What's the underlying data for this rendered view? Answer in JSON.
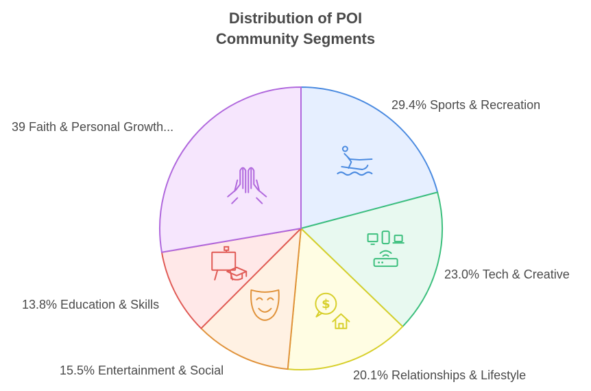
{
  "chart_data": {
    "type": "pie",
    "title": [
      "Distribution of POI",
      "Community Segments"
    ],
    "slices": [
      {
        "label": "29.4% Sports & Recreation",
        "value": 29.4,
        "color": "#4a8ae0",
        "fill": "#e6efff",
        "icon": "water-ski-icon"
      },
      {
        "label": "23.0% Tech & Creative",
        "value": 23.0,
        "color": "#3cbf7d",
        "fill": "#e8f9f0",
        "icon": "devices-router-icon"
      },
      {
        "label": "20.1% Relationships & Lifestyle",
        "value": 20.1,
        "color": "#d7cf2a",
        "fill": "#fffde3",
        "icon": "money-house-icon"
      },
      {
        "label": "15.5% Entertainment & Social",
        "value": 15.5,
        "color": "#e0923a",
        "fill": "#fff1e3",
        "icon": "mask-icon"
      },
      {
        "label": "13.8% Education & Skills",
        "value": 13.8,
        "color": "#e05a55",
        "fill": "#ffe8e8",
        "icon": "easel-graduation-icon"
      },
      {
        "label": "39 Faith & Personal Growth...",
        "value": 39,
        "color": "#b068dd",
        "fill": "#f6e6fd",
        "icon": "praying-hands-icon"
      }
    ]
  }
}
